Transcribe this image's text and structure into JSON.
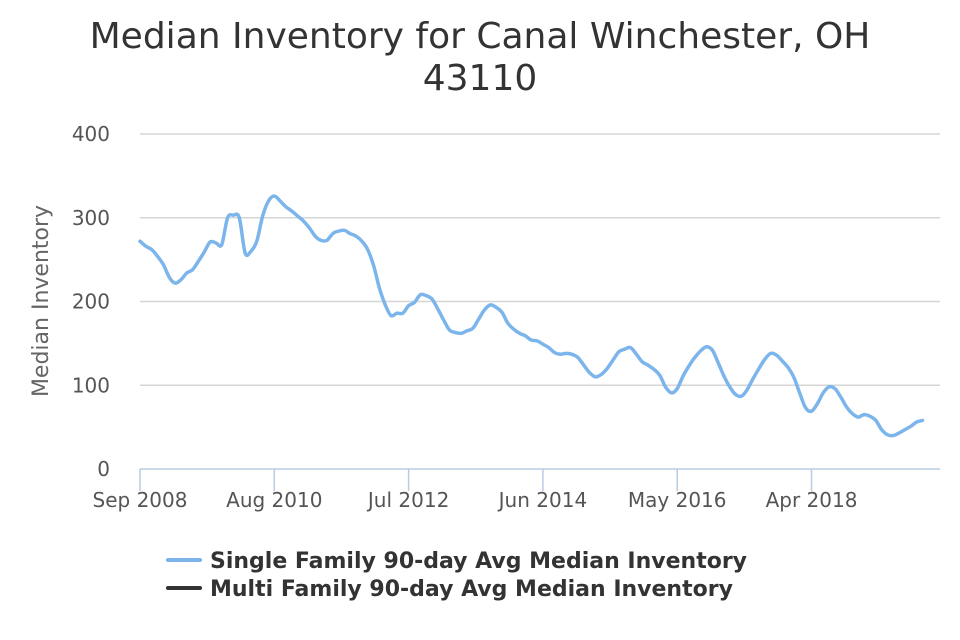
{
  "chart_data": {
    "type": "line",
    "title_lines": [
      "Median Inventory for Canal Winchester, OH",
      "43110"
    ],
    "ylabel": "Median Inventory",
    "ylim": [
      0,
      400
    ],
    "yticks": [
      0,
      100,
      200,
      300,
      400
    ],
    "xlim": [
      "2008-09",
      "2020-02"
    ],
    "xticks": [
      {
        "label": "Sep 2008",
        "date": "2008-09"
      },
      {
        "label": "Aug 2010",
        "date": "2010-08"
      },
      {
        "label": "Jul 2012",
        "date": "2012-07"
      },
      {
        "label": "Jun 2014",
        "date": "2014-06"
      },
      {
        "label": "May 2016",
        "date": "2016-05"
      },
      {
        "label": "Apr 2018",
        "date": "2018-04"
      }
    ],
    "grid": true,
    "legend_position": "bottom",
    "series": [
      {
        "name": "Single Family 90-day Avg Median Inventory",
        "color": "#7cb5ec",
        "points": [
          [
            "2008-09",
            272
          ],
          [
            "2008-10",
            266
          ],
          [
            "2008-11",
            262
          ],
          [
            "2008-12",
            254
          ],
          [
            "2009-01",
            244
          ],
          [
            "2009-02",
            229
          ],
          [
            "2009-03",
            222
          ],
          [
            "2009-04",
            226
          ],
          [
            "2009-05",
            234
          ],
          [
            "2009-06",
            238
          ],
          [
            "2009-07",
            248
          ],
          [
            "2009-08",
            259
          ],
          [
            "2009-09",
            271
          ],
          [
            "2009-10",
            270
          ],
          [
            "2009-11",
            268
          ],
          [
            "2009-12",
            300
          ],
          [
            "2010-01",
            303
          ],
          [
            "2010-02",
            300
          ],
          [
            "2010-03",
            258
          ],
          [
            "2010-04",
            260
          ],
          [
            "2010-05",
            272
          ],
          [
            "2010-06",
            302
          ],
          [
            "2010-07",
            320
          ],
          [
            "2010-08",
            326
          ],
          [
            "2010-09",
            320
          ],
          [
            "2010-10",
            313
          ],
          [
            "2010-11",
            308
          ],
          [
            "2010-12",
            302
          ],
          [
            "2011-01",
            296
          ],
          [
            "2011-02",
            288
          ],
          [
            "2011-03",
            278
          ],
          [
            "2011-04",
            273
          ],
          [
            "2011-05",
            273
          ],
          [
            "2011-06",
            281
          ],
          [
            "2011-07",
            284
          ],
          [
            "2011-08",
            285
          ],
          [
            "2011-09",
            281
          ],
          [
            "2011-10",
            278
          ],
          [
            "2011-11",
            272
          ],
          [
            "2011-12",
            262
          ],
          [
            "2012-01",
            243
          ],
          [
            "2012-02",
            216
          ],
          [
            "2012-03",
            196
          ],
          [
            "2012-04",
            183
          ],
          [
            "2012-05",
            186
          ],
          [
            "2012-06",
            186
          ],
          [
            "2012-07",
            195
          ],
          [
            "2012-08",
            199
          ],
          [
            "2012-09",
            208
          ],
          [
            "2012-10",
            207
          ],
          [
            "2012-11",
            203
          ],
          [
            "2012-12",
            191
          ],
          [
            "2013-01",
            178
          ],
          [
            "2013-02",
            166
          ],
          [
            "2013-03",
            163
          ],
          [
            "2013-04",
            162
          ],
          [
            "2013-05",
            165
          ],
          [
            "2013-06",
            168
          ],
          [
            "2013-07",
            179
          ],
          [
            "2013-08",
            190
          ],
          [
            "2013-09",
            196
          ],
          [
            "2013-10",
            193
          ],
          [
            "2013-11",
            187
          ],
          [
            "2013-12",
            174
          ],
          [
            "2014-01",
            167
          ],
          [
            "2014-02",
            162
          ],
          [
            "2014-03",
            159
          ],
          [
            "2014-04",
            154
          ],
          [
            "2014-05",
            153
          ],
          [
            "2014-06",
            149
          ],
          [
            "2014-07",
            145
          ],
          [
            "2014-08",
            139
          ],
          [
            "2014-09",
            137
          ],
          [
            "2014-10",
            138
          ],
          [
            "2014-11",
            137
          ],
          [
            "2014-12",
            133
          ],
          [
            "2015-01",
            124
          ],
          [
            "2015-02",
            115
          ],
          [
            "2015-03",
            110
          ],
          [
            "2015-04",
            113
          ],
          [
            "2015-05",
            120
          ],
          [
            "2015-06",
            130
          ],
          [
            "2015-07",
            140
          ],
          [
            "2015-08",
            143
          ],
          [
            "2015-09",
            145
          ],
          [
            "2015-10",
            137
          ],
          [
            "2015-11",
            128
          ],
          [
            "2015-12",
            124
          ],
          [
            "2016-01",
            119
          ],
          [
            "2016-02",
            112
          ],
          [
            "2016-03",
            98
          ],
          [
            "2016-04",
            91
          ],
          [
            "2016-05",
            96
          ],
          [
            "2016-06",
            111
          ],
          [
            "2016-07",
            123
          ],
          [
            "2016-08",
            133
          ],
          [
            "2016-09",
            141
          ],
          [
            "2016-10",
            146
          ],
          [
            "2016-11",
            142
          ],
          [
            "2016-12",
            127
          ],
          [
            "2017-01",
            111
          ],
          [
            "2017-02",
            98
          ],
          [
            "2017-03",
            89
          ],
          [
            "2017-04",
            87
          ],
          [
            "2017-05",
            95
          ],
          [
            "2017-06",
            108
          ],
          [
            "2017-07",
            120
          ],
          [
            "2017-08",
            131
          ],
          [
            "2017-09",
            138
          ],
          [
            "2017-10",
            136
          ],
          [
            "2017-11",
            129
          ],
          [
            "2017-12",
            121
          ],
          [
            "2018-01",
            109
          ],
          [
            "2018-02",
            90
          ],
          [
            "2018-03",
            73
          ],
          [
            "2018-04",
            69
          ],
          [
            "2018-05",
            78
          ],
          [
            "2018-06",
            91
          ],
          [
            "2018-07",
            98
          ],
          [
            "2018-08",
            96
          ],
          [
            "2018-09",
            86
          ],
          [
            "2018-10",
            74
          ],
          [
            "2018-11",
            66
          ],
          [
            "2018-12",
            62
          ],
          [
            "2019-01",
            65
          ],
          [
            "2019-02",
            63
          ],
          [
            "2019-03",
            58
          ],
          [
            "2019-04",
            47
          ],
          [
            "2019-05",
            41
          ],
          [
            "2019-06",
            40
          ],
          [
            "2019-07",
            43
          ],
          [
            "2019-08",
            47
          ],
          [
            "2019-09",
            51
          ],
          [
            "2019-10",
            56
          ],
          [
            "2019-11",
            58
          ]
        ]
      },
      {
        "name": "Multi Family 90-day Avg Median Inventory",
        "color": "#333333",
        "points": []
      }
    ]
  }
}
